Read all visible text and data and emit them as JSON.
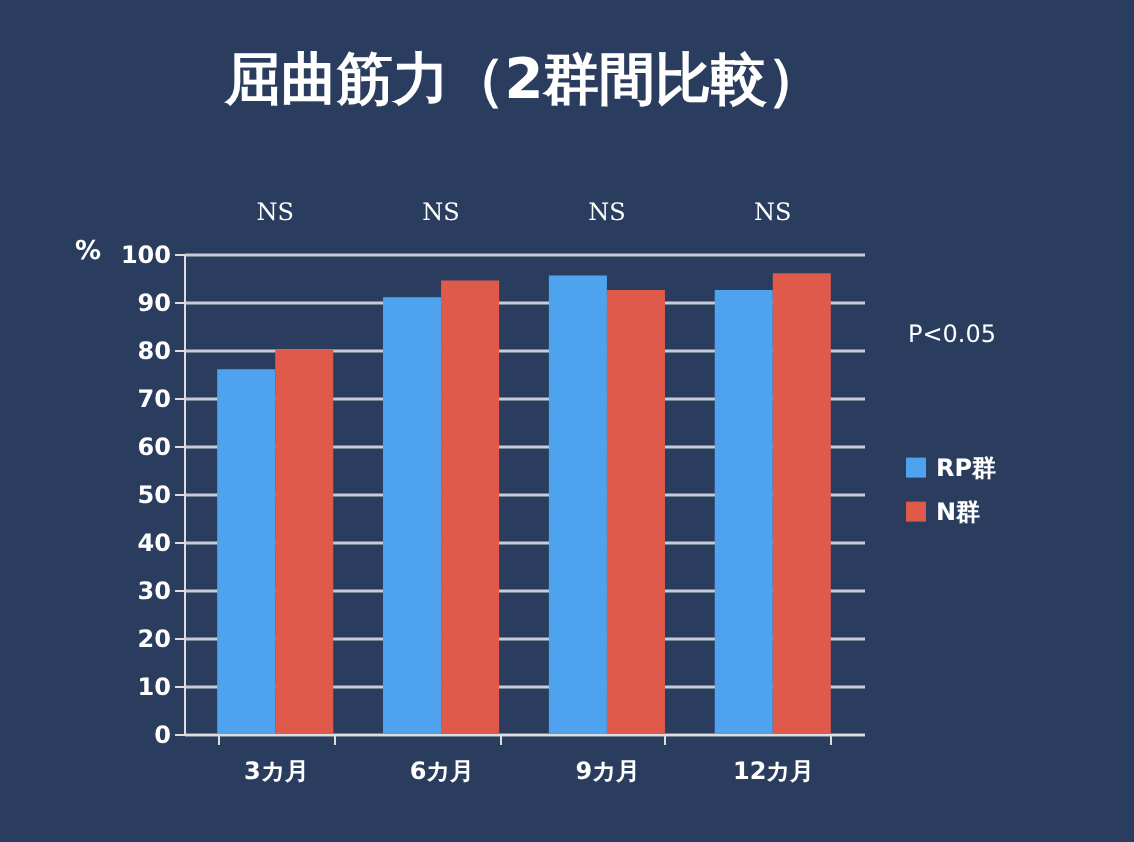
{
  "chart_data": {
    "type": "bar",
    "title": "屈曲筋力（2群間比較）",
    "ylabel": "%",
    "categories": [
      "3カ月",
      "6カ月",
      "9カ月",
      "12カ月"
    ],
    "series": [
      {
        "name": "RP群",
        "color": "#4fa3ee",
        "values": [
          76,
          91,
          95.5,
          92.5
        ]
      },
      {
        "name": "N群",
        "color": "#e05a4c",
        "values": [
          80,
          94.5,
          92.5,
          96
        ]
      }
    ],
    "ylim": [
      0,
      100
    ],
    "yticks": [
      0,
      10,
      20,
      30,
      40,
      50,
      60,
      70,
      80,
      90,
      100
    ],
    "grid": "y",
    "legend": "right",
    "annotations": [
      "NS",
      "NS",
      "NS",
      "NS",
      "P<0.05"
    ]
  }
}
